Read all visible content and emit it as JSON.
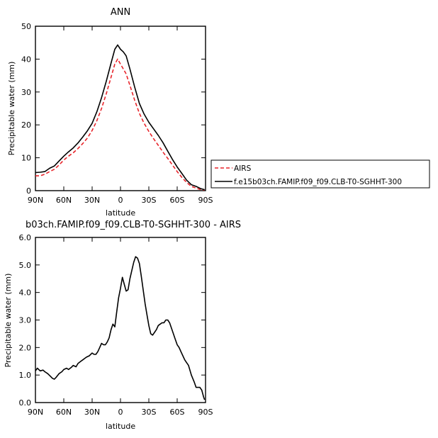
{
  "chart_data": [
    {
      "type": "line",
      "title": "ANN",
      "xlabel": "latitude",
      "ylabel": "Precipitable water (mm)",
      "xlim": [
        90,
        -90
      ],
      "ylim": [
        0,
        50
      ],
      "xticks": [
        {
          "value": 90,
          "label": "90N"
        },
        {
          "value": 60,
          "label": "60N"
        },
        {
          "value": 30,
          "label": "30N"
        },
        {
          "value": 0,
          "label": "0"
        },
        {
          "value": -30,
          "label": "30S"
        },
        {
          "value": -60,
          "label": "60S"
        },
        {
          "value": -90,
          "label": "90S"
        }
      ],
      "yticks": [
        {
          "value": 0,
          "label": "0"
        },
        {
          "value": 10,
          "label": "10"
        },
        {
          "value": 20,
          "label": "20"
        },
        {
          "value": 30,
          "label": "30"
        },
        {
          "value": 40,
          "label": "40"
        },
        {
          "value": 50,
          "label": "50"
        }
      ],
      "grid": false,
      "legend_position": "right-outside",
      "series": [
        {
          "name": "AIRS",
          "color": "#e8242a",
          "dash": true,
          "x": [
            90,
            85,
            80,
            75,
            70,
            65,
            60,
            55,
            50,
            45,
            40,
            35,
            30,
            25,
            20,
            15,
            10,
            6,
            3,
            0,
            -3,
            -6,
            -10,
            -15,
            -20,
            -25,
            -30,
            -35,
            -40,
            -45,
            -50,
            -55,
            -60,
            -65,
            -70,
            -75,
            -80,
            -85,
            -89
          ],
          "y": [
            4.5,
            4.5,
            5.0,
            5.8,
            6.5,
            7.8,
            9.3,
            10.5,
            11.5,
            12.8,
            14.3,
            16.0,
            18.3,
            21.3,
            25.0,
            29.5,
            34.5,
            38.5,
            40.0,
            38.5,
            37.0,
            35.5,
            32.0,
            27.5,
            23.5,
            20.5,
            18.0,
            15.8,
            13.8,
            11.7,
            9.8,
            7.8,
            5.8,
            4.0,
            2.5,
            1.3,
            0.8,
            0.3,
            0.2
          ]
        },
        {
          "name": "f.e15b03ch.FAMIP.f09_f09.CLB-T0-SGHHT-300",
          "color": "#000000",
          "dash": false,
          "x": [
            90,
            85,
            80,
            75,
            70,
            65,
            60,
            55,
            50,
            45,
            40,
            35,
            30,
            25,
            20,
            15,
            10,
            6,
            3,
            0,
            -3,
            -6,
            -10,
            -15,
            -20,
            -25,
            -30,
            -35,
            -40,
            -45,
            -50,
            -55,
            -60,
            -65,
            -70,
            -75,
            -80,
            -85,
            -89
          ],
          "y": [
            5.5,
            5.6,
            5.8,
            6.8,
            7.5,
            9.0,
            10.5,
            11.8,
            13.0,
            14.5,
            16.3,
            18.2,
            20.5,
            24.0,
            28.3,
            33.3,
            38.8,
            43.0,
            44.3,
            43.0,
            42.2,
            41.0,
            37.0,
            31.5,
            26.5,
            23.3,
            20.8,
            18.8,
            16.8,
            14.6,
            12.0,
            9.5,
            7.2,
            5.2,
            3.2,
            1.8,
            1.3,
            0.6,
            0.3
          ]
        }
      ]
    },
    {
      "type": "line",
      "title": "b03ch.FAMIP.f09_f09.CLB-T0-SGHHT-300 - AIRS",
      "xlabel": "latitude",
      "ylabel": "Precipitable water (mm)",
      "xlim": [
        90,
        -90
      ],
      "ylim": [
        0,
        6
      ],
      "xticks": [
        {
          "value": 90,
          "label": "90N"
        },
        {
          "value": 60,
          "label": "60N"
        },
        {
          "value": 30,
          "label": "30N"
        },
        {
          "value": 0,
          "label": "0"
        },
        {
          "value": -30,
          "label": "30S"
        },
        {
          "value": -60,
          "label": "60S"
        },
        {
          "value": -90,
          "label": "90S"
        }
      ],
      "yticks": [
        {
          "value": 0,
          "label": "0.0"
        },
        {
          "value": 1,
          "label": "1.0"
        },
        {
          "value": 2,
          "label": "2.0"
        },
        {
          "value": 3,
          "label": "3.0"
        },
        {
          "value": 4,
          "label": "4.0"
        },
        {
          "value": 5,
          "label": "5.0"
        },
        {
          "value": 6,
          "label": "6.0"
        }
      ],
      "grid": false,
      "series": [
        {
          "color": "#000000",
          "dash": false,
          "x": [
            90,
            88,
            85,
            82,
            80,
            77,
            74,
            72,
            70,
            68,
            65,
            62,
            60,
            57,
            55,
            52,
            50,
            47,
            45,
            42,
            40,
            38,
            36,
            33,
            30,
            28,
            26,
            24,
            22,
            20,
            18,
            16,
            14,
            12,
            11,
            10,
            8,
            6,
            4,
            2,
            0,
            -2,
            -4,
            -6,
            -8,
            -10,
            -12,
            -14,
            -16,
            -18,
            -20,
            -22,
            -24,
            -26,
            -28,
            -30,
            -32,
            -34,
            -36,
            -38,
            -40,
            -42,
            -44,
            -46,
            -48,
            -50,
            -52,
            -55,
            -58,
            -60,
            -62,
            -64,
            -66,
            -68,
            -70,
            -72,
            -75,
            -78,
            -80,
            -82,
            -84,
            -86,
            -88,
            -89
          ],
          "y": [
            1.15,
            1.25,
            1.15,
            1.18,
            1.12,
            1.05,
            0.95,
            0.88,
            0.85,
            0.92,
            1.05,
            1.12,
            1.2,
            1.25,
            1.2,
            1.28,
            1.35,
            1.3,
            1.42,
            1.5,
            1.55,
            1.6,
            1.65,
            1.7,
            1.8,
            1.75,
            1.75,
            1.85,
            2.0,
            2.15,
            2.1,
            2.1,
            2.2,
            2.35,
            2.5,
            2.65,
            2.85,
            2.75,
            3.3,
            3.8,
            4.15,
            4.55,
            4.3,
            4.05,
            4.1,
            4.5,
            4.8,
            5.1,
            5.3,
            5.25,
            5.05,
            4.6,
            4.1,
            3.6,
            3.2,
            2.8,
            2.5,
            2.45,
            2.55,
            2.65,
            2.8,
            2.85,
            2.9,
            2.9,
            3.0,
            3.0,
            2.9,
            2.6,
            2.3,
            2.1,
            2.0,
            1.85,
            1.7,
            1.55,
            1.45,
            1.35,
            1.0,
            0.75,
            0.55,
            0.55,
            0.55,
            0.45,
            0.2,
            0.1
          ]
        }
      ]
    }
  ]
}
